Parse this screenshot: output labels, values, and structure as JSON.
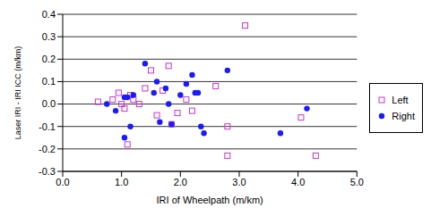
{
  "chart_data": {
    "type": "scatter",
    "x_label": "IRI of Wheelpath (m/km)",
    "y_label": "Laser IRI - IRI ICC (m/km)",
    "xlim": [
      0,
      5
    ],
    "xticks": [
      {
        "value": 0,
        "label": "0.0"
      },
      {
        "value": 1,
        "label": "1.0"
      },
      {
        "value": 2,
        "label": "2.0"
      },
      {
        "value": 3,
        "label": "3.0"
      },
      {
        "value": 4,
        "label": "4.0"
      },
      {
        "value": 5,
        "label": "5.0"
      }
    ],
    "ylim": [
      -0.3,
      0.4
    ],
    "yticks": [
      -0.3,
      -0.2,
      -0.1,
      {
        "value": 0,
        "label": "0.0"
      },
      0.1,
      0.2,
      0.3,
      0.4
    ],
    "grid": true,
    "legend": "right",
    "series": [
      {
        "name": "Left",
        "color": "#cc33cc",
        "marker": "square",
        "x": [
          0.6,
          0.85,
          0.95,
          1.0,
          1.05,
          1.1,
          1.15,
          1.2,
          1.3,
          1.4,
          1.5,
          1.6,
          1.7,
          1.8,
          1.85,
          1.95,
          2.1,
          2.2,
          2.6,
          2.8,
          2.8,
          3.1,
          4.05,
          4.3
        ],
        "values": [
          0.01,
          0.02,
          0.05,
          0.0,
          -0.02,
          -0.18,
          0.04,
          0.02,
          0.0,
          0.07,
          0.15,
          -0.05,
          0.06,
          0.17,
          -0.09,
          -0.04,
          0.02,
          -0.03,
          0.08,
          -0.1,
          -0.23,
          0.35,
          -0.06,
          -0.23
        ]
      },
      {
        "name": "Right",
        "color": "#1a1aff",
        "marker": "circle",
        "x": [
          0.75,
          0.9,
          1.05,
          1.05,
          1.1,
          1.15,
          1.2,
          1.4,
          1.55,
          1.6,
          1.65,
          1.75,
          1.8,
          1.85,
          2.0,
          2.1,
          2.2,
          2.25,
          2.3,
          2.35,
          2.4,
          2.8,
          3.7,
          4.15
        ],
        "values": [
          0.0,
          -0.03,
          0.03,
          -0.15,
          0.03,
          -0.1,
          0.04,
          0.18,
          0.05,
          0.1,
          -0.08,
          0.07,
          0.0,
          -0.09,
          0.04,
          0.09,
          0.13,
          0.05,
          0.05,
          -0.1,
          -0.13,
          0.15,
          -0.13,
          -0.02
        ]
      }
    ]
  }
}
